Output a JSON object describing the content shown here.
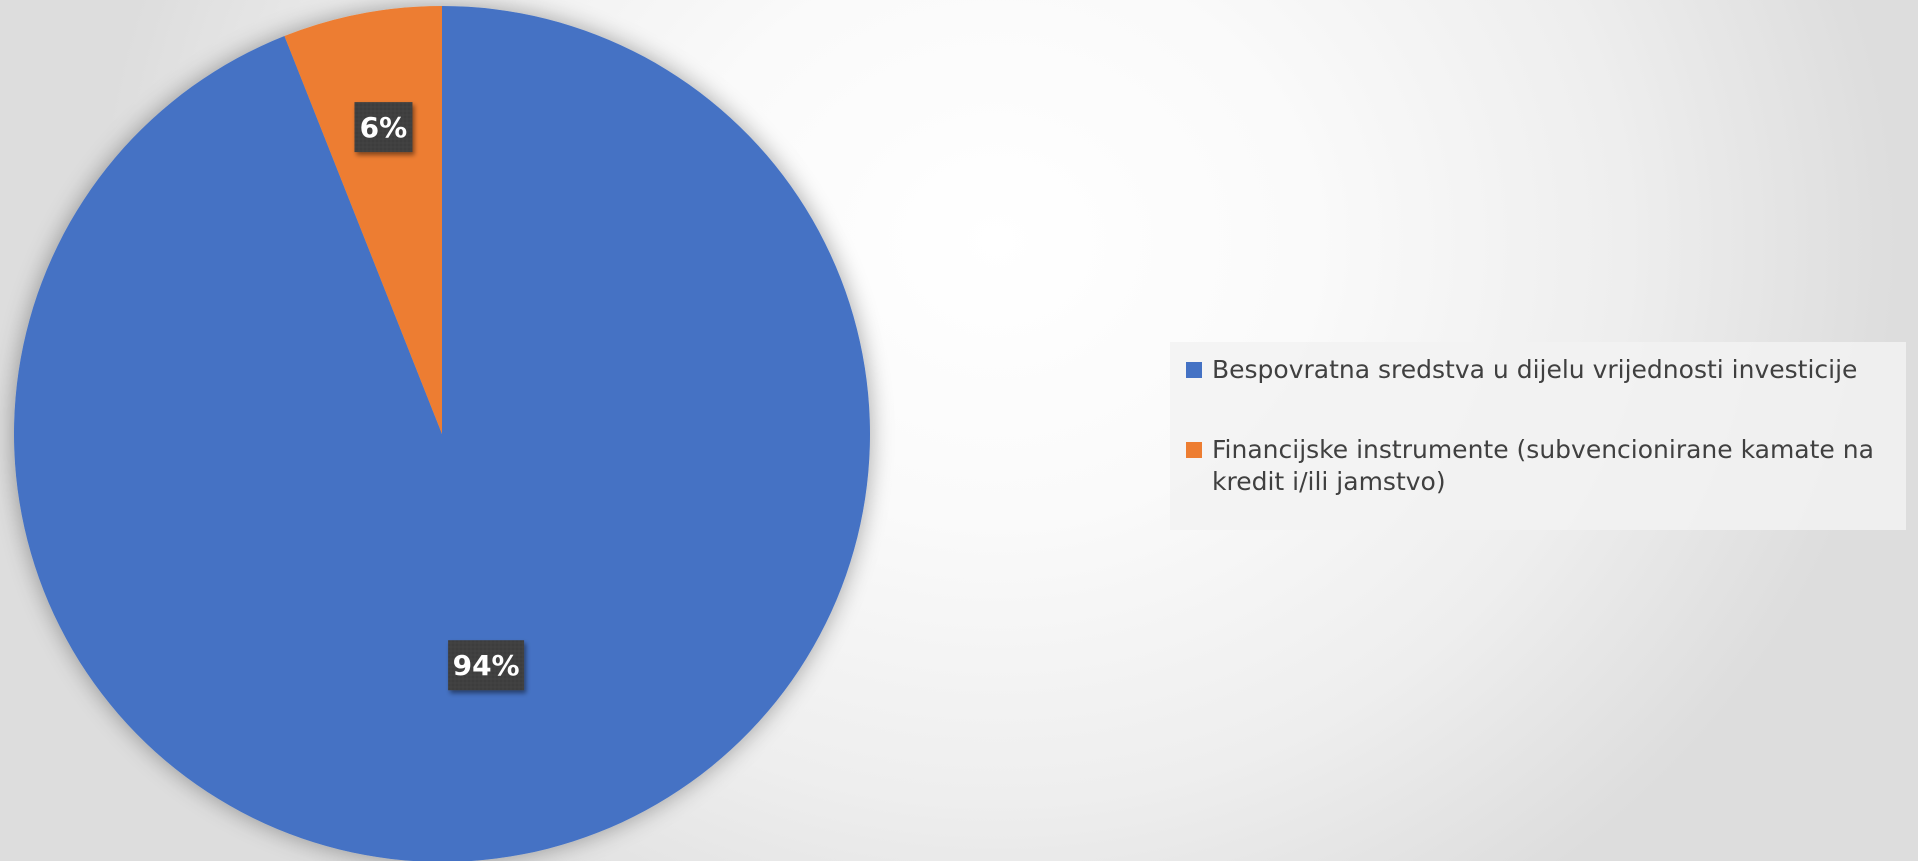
{
  "chart_data": {
    "type": "pie",
    "title": "",
    "slices": [
      {
        "name": "Bespovratna sredstva u dijelu vrijednosti investicije",
        "value": 94,
        "label": "94%",
        "color": "#4472C4"
      },
      {
        "name": "Financijske instrumente (subvencionirane kamate na kredit i/ili jamstvo)",
        "value": 6,
        "label": "6%",
        "color": "#ED7D31"
      }
    ],
    "start_angle": "12 o'clock",
    "direction": "clockwise",
    "legend_position": "right",
    "data_label_style": "dark-box"
  }
}
